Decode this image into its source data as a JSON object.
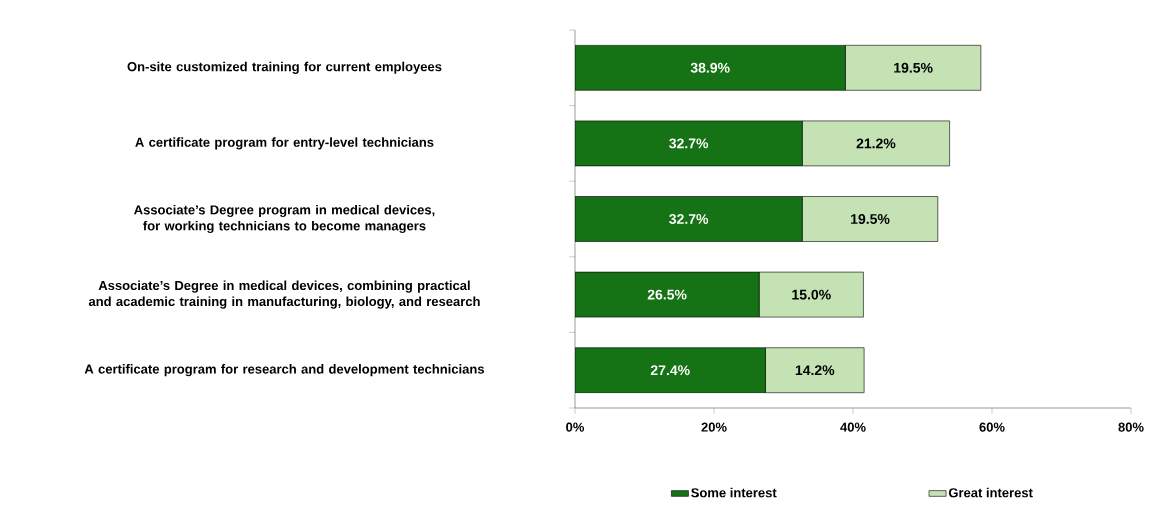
{
  "chart_data": {
    "type": "bar",
    "orientation": "horizontal",
    "stacked": true,
    "categories": [
      "On-site customized training for current employees",
      "A certificate program for entry-level technicians",
      "Associate’s Degree program in medical devices, for working technicians to become managers",
      "Associate’s Degree in medical devices, combining practical and academic training in manufacturing, biology, and research",
      "A certificate program for research and development technicians"
    ],
    "series": [
      {
        "name": "Some interest",
        "color": "#157315",
        "values": [
          38.9,
          32.7,
          32.7,
          26.5,
          27.4
        ],
        "value_labels": [
          "38.9%",
          "32.7%",
          "32.7%",
          "26.5%",
          "27.4%"
        ]
      },
      {
        "name": "Great interest",
        "color": "#c4e2b4",
        "values": [
          19.5,
          21.2,
          19.5,
          15.0,
          14.2
        ],
        "value_labels": [
          "19.5%",
          "21.2%",
          "19.5%",
          "15.0%",
          "14.2%"
        ]
      }
    ],
    "xlim": [
      0,
      80
    ],
    "xticks": [
      {
        "value": 0,
        "label": "0%"
      },
      {
        "value": 20,
        "label": "20%"
      },
      {
        "value": 40,
        "label": "40%"
      },
      {
        "value": 60,
        "label": "60%"
      },
      {
        "value": 80,
        "label": "80%"
      }
    ],
    "grid": false,
    "legend": "bottom"
  }
}
